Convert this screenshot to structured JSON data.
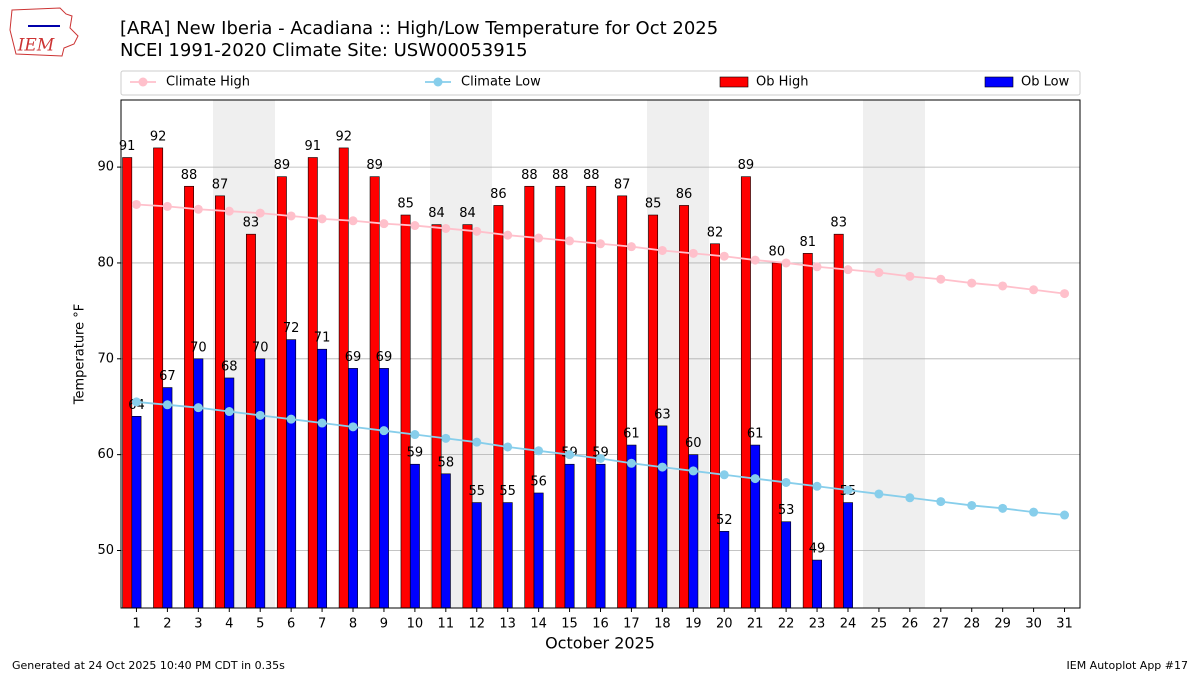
{
  "chart_data": {
    "type": "bar",
    "logo_text": "IEM",
    "title": "[ARA] New Iberia - Acadiana :: High/Low Temperature for Oct 2025",
    "subtitle": "NCEI 1991-2020 Climate Site: USW00053915",
    "ylabel": "Temperature °F",
    "xlabel": "October 2025",
    "footer_left": "Generated at 24 Oct 2025 10:40 PM CDT in 0.35s",
    "footer_right": "IEM Autoplot App #17",
    "legend_loc": "above",
    "x": [
      1,
      2,
      3,
      4,
      5,
      6,
      7,
      8,
      9,
      10,
      11,
      12,
      13,
      14,
      15,
      16,
      17,
      18,
      19,
      20,
      21,
      22,
      23,
      24,
      25,
      26,
      27,
      28,
      29,
      30,
      31
    ],
    "xlim": [
      0.5,
      31.5
    ],
    "xticks": [
      1,
      2,
      3,
      4,
      5,
      6,
      7,
      8,
      9,
      10,
      11,
      12,
      13,
      14,
      15,
      16,
      17,
      18,
      19,
      20,
      21,
      22,
      23,
      24,
      25,
      26,
      27,
      28,
      29,
      30,
      31
    ],
    "ylim": [
      44,
      97
    ],
    "yticks": [
      50,
      60,
      70,
      80,
      90
    ],
    "grid": true,
    "series": [
      {
        "name": "Climate High",
        "type": "line",
        "color": "#ffc0cb",
        "values": [
          86.1,
          85.9,
          85.6,
          85.4,
          85.2,
          84.9,
          84.6,
          84.4,
          84.1,
          83.9,
          83.6,
          83.3,
          82.9,
          82.6,
          82.3,
          82.0,
          81.7,
          81.3,
          81.0,
          80.7,
          80.3,
          80.0,
          79.6,
          79.3,
          79.0,
          78.6,
          78.3,
          77.9,
          77.6,
          77.2,
          76.8
        ]
      },
      {
        "name": "Climate Low",
        "type": "line",
        "color": "#87ceeb",
        "values": [
          65.5,
          65.2,
          64.9,
          64.5,
          64.1,
          63.7,
          63.3,
          62.9,
          62.5,
          62.1,
          61.7,
          61.3,
          60.8,
          60.4,
          60.0,
          59.6,
          59.1,
          58.7,
          58.3,
          57.9,
          57.5,
          57.1,
          56.7,
          56.3,
          55.9,
          55.5,
          55.1,
          54.7,
          54.4,
          54.0,
          53.7
        ]
      },
      {
        "name": "Ob High",
        "type": "bar",
        "color": "#ff0000",
        "values": [
          91,
          92,
          88,
          87,
          83,
          89,
          91,
          92,
          89,
          85,
          84,
          84,
          86,
          88,
          88,
          88,
          87,
          85,
          86,
          82,
          89,
          80,
          81,
          83,
          null,
          null,
          null,
          null,
          null,
          null,
          null
        ]
      },
      {
        "name": "Ob Low",
        "type": "bar",
        "color": "#0000ff",
        "values": [
          64,
          67,
          70,
          68,
          70,
          72,
          71,
          69,
          69,
          59,
          58,
          55,
          55,
          56,
          59,
          59,
          61,
          63,
          60,
          52,
          61,
          53,
          49,
          55,
          null,
          null,
          null,
          null,
          null,
          null,
          null
        ]
      }
    ]
  }
}
